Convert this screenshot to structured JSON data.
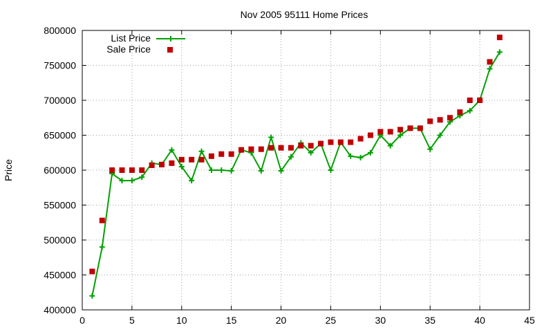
{
  "chart_data": {
    "type": "line",
    "title": "Nov 2005 95111 Home Prices",
    "xlabel": "",
    "ylabel": "Price",
    "xlim": [
      0,
      45
    ],
    "ylim": [
      400000,
      800000
    ],
    "xticks": [
      0,
      5,
      10,
      15,
      20,
      25,
      30,
      35,
      40,
      45
    ],
    "yticks": [
      400000,
      450000,
      500000,
      550000,
      600000,
      650000,
      700000,
      750000,
      800000
    ],
    "grid": true,
    "legend_position": "top-left",
    "x": [
      1,
      2,
      3,
      4,
      5,
      6,
      7,
      8,
      9,
      10,
      11,
      12,
      13,
      14,
      15,
      16,
      17,
      18,
      19,
      20,
      21,
      22,
      23,
      24,
      25,
      26,
      27,
      28,
      29,
      30,
      31,
      32,
      33,
      34,
      35,
      36,
      37,
      38,
      39,
      40,
      41,
      42
    ],
    "series": [
      {
        "name": "List Price",
        "style": "linespoints",
        "color": "#00a000",
        "marker": "plus",
        "values": [
          420000,
          490000,
          595000,
          585000,
          585000,
          590000,
          610000,
          608000,
          629000,
          605000,
          585000,
          627000,
          600000,
          600000,
          599000,
          629000,
          625000,
          599000,
          647000,
          599000,
          619000,
          639000,
          625000,
          638000,
          600000,
          640000,
          620000,
          618000,
          625000,
          650000,
          635000,
          650000,
          660000,
          660000,
          630000,
          650000,
          669000,
          678000,
          685000,
          700000,
          745000,
          769000
        ]
      },
      {
        "name": "Sale Price",
        "style": "points",
        "color": "#c00000",
        "marker": "square",
        "values": [
          455000,
          528000,
          600000,
          600000,
          600000,
          600000,
          607000,
          608000,
          610000,
          615000,
          615000,
          615000,
          620000,
          623000,
          623000,
          629000,
          630000,
          630000,
          632000,
          632000,
          632000,
          635000,
          635000,
          638000,
          640000,
          640000,
          640000,
          645000,
          650000,
          655000,
          655000,
          658000,
          660000,
          660000,
          670000,
          672000,
          675000,
          683000,
          700000,
          700000,
          755000,
          790000
        ]
      }
    ]
  }
}
